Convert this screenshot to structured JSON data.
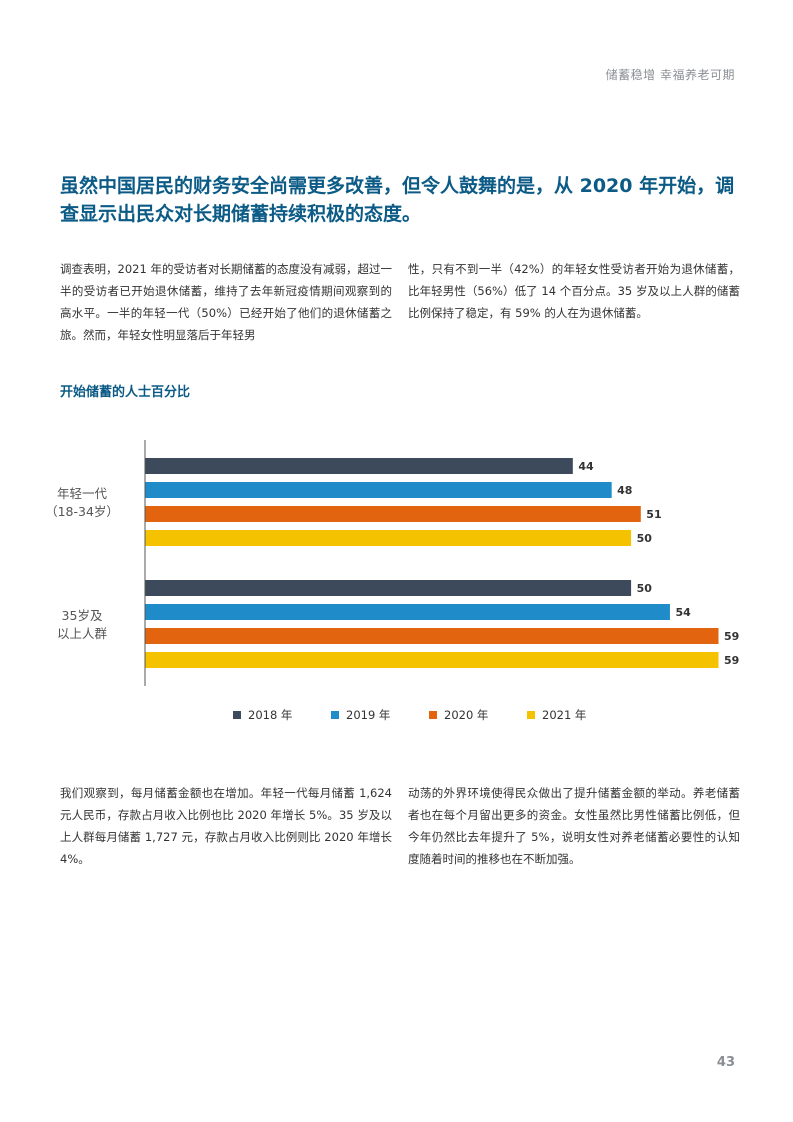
{
  "header": {
    "running_title": "储蓄稳增  幸福养老可期"
  },
  "headline": "虽然中国居民的财务安全尚需更多改善，但令人鼓舞的是，从 2020 年开始，调查显示出民众对长期储蓄持续积极的态度。",
  "intro": {
    "left": "调查表明，2021 年的受访者对长期储蓄的态度没有减弱，超过一半的受访者已开始退休储蓄，维持了去年新冠疫情期间观察到的高水平。一半的年轻一代（50%）已经开始了他们的退休储蓄之旅。然而，年轻女性明显落后于年轻男",
    "right": "性，只有不到一半（42%）的年轻女性受访者开始为退休储蓄，比年轻男性（56%）低了 14 个百分点。35 岁及以上人群的储蓄比例保持了稳定，有 59% 的人在为退休储蓄。"
  },
  "chart_title": "开始储蓄的人士百分比",
  "chart_data": {
    "type": "bar",
    "orientation": "horizontal",
    "title": "开始储蓄的人士百分比",
    "categories": [
      {
        "lines": [
          "年轻一代",
          "（18-34岁）"
        ]
      },
      {
        "lines": [
          "35岁及",
          "以上人群"
        ]
      }
    ],
    "series": [
      {
        "name": "2018 年",
        "color": "#3d4a5c",
        "values": [
          44,
          50
        ]
      },
      {
        "name": "2019 年",
        "color": "#1f8cc9",
        "values": [
          48,
          54
        ]
      },
      {
        "name": "2020 年",
        "color": "#e2640f",
        "values": [
          51,
          59
        ]
      },
      {
        "name": "2021 年",
        "color": "#f5c200",
        "values": [
          50,
          59
        ]
      }
    ],
    "xlim": [
      0,
      59
    ],
    "grid": false,
    "legend": "bottom-center"
  },
  "body": {
    "left": "我们观察到，每月储蓄金额也在增加。年轻一代每月储蓄 1,624 元人民币，存款占月收入比例也比 2020 年增长 5%。35 岁及以上人群每月储蓄 1,727 元，存款占月收入比例则比 2020 年增长 4%。",
    "right": "动荡的外界环境使得民众做出了提升储蓄金额的举动。养老储蓄者也在每个月留出更多的资金。女性虽然比男性储蓄比例低，但今年仍然比去年提升了 5%，说明女性对养老储蓄必要性的认知度随着时间的推移也在不断加强。"
  },
  "page_number": "43"
}
